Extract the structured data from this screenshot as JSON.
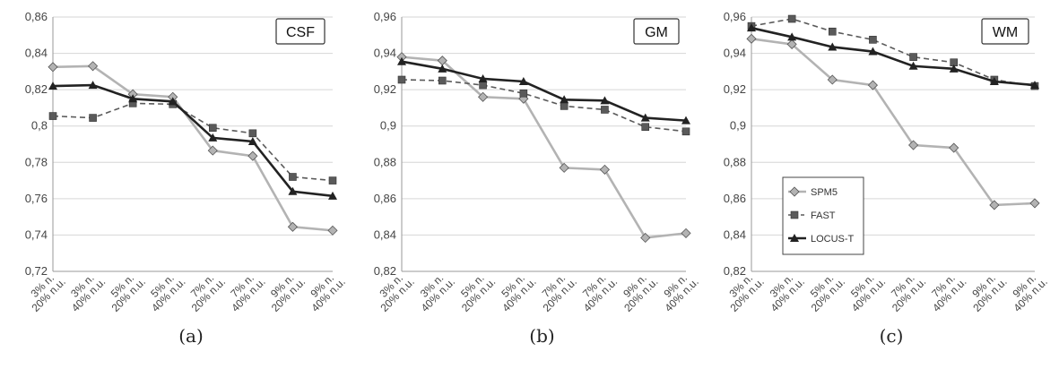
{
  "chart_data": [
    {
      "type": "line",
      "box_label": "CSF",
      "caption": "(a)",
      "categories": [
        [
          "3% n.",
          "20% n.u."
        ],
        [
          "3% n.",
          "40% n.u."
        ],
        [
          "5% n.",
          "20% n.u."
        ],
        [
          "5% n.",
          "40% n.u."
        ],
        [
          "7% n.",
          "20% n.u."
        ],
        [
          "7% n.",
          "40% n.u."
        ],
        [
          "9% n.",
          "20% n.u."
        ],
        [
          "9% n.",
          "40% n.u."
        ]
      ],
      "ylim": [
        0.72,
        0.86
      ],
      "yticks": [
        "0,72",
        "0,74",
        "0,76",
        "0,78",
        "0,8",
        "0,82",
        "0,84",
        "0,86"
      ],
      "grid": true,
      "series": [
        {
          "name": "SPM5",
          "values": [
            0.8325,
            0.833,
            0.8175,
            0.816,
            0.7865,
            0.7835,
            0.7445,
            0.7425
          ]
        },
        {
          "name": "FAST",
          "values": [
            0.8055,
            0.8045,
            0.8125,
            0.812,
            0.799,
            0.796,
            0.772,
            0.77
          ]
        },
        {
          "name": "LOCUS-T",
          "values": [
            0.822,
            0.8225,
            0.815,
            0.8135,
            0.7935,
            0.7915,
            0.764,
            0.7615
          ]
        }
      ]
    },
    {
      "type": "line",
      "box_label": "GM",
      "caption": "(b)",
      "categories": [
        [
          "3% n.",
          "20% n.u."
        ],
        [
          "3% n.",
          "40% n.u."
        ],
        [
          "5% n.",
          "20% n.u."
        ],
        [
          "5% n.",
          "40% n.u."
        ],
        [
          "7% n.",
          "20% n.u."
        ],
        [
          "7% n.",
          "40% n.u."
        ],
        [
          "9% n.",
          "20% n.u."
        ],
        [
          "9% n.",
          "40% n.u."
        ]
      ],
      "ylim": [
        0.82,
        0.96
      ],
      "yticks": [
        "0,82",
        "0,84",
        "0,86",
        "0,88",
        "0,9",
        "0,92",
        "0,94",
        "0,96"
      ],
      "grid": true,
      "series": [
        {
          "name": "SPM5",
          "values": [
            0.938,
            0.936,
            0.916,
            0.915,
            0.877,
            0.876,
            0.8385,
            0.841
          ]
        },
        {
          "name": "FAST",
          "values": [
            0.9255,
            0.925,
            0.9225,
            0.918,
            0.911,
            0.909,
            0.8995,
            0.897
          ]
        },
        {
          "name": "LOCUS-T",
          "values": [
            0.9355,
            0.9315,
            0.926,
            0.9245,
            0.9145,
            0.914,
            0.9045,
            0.903
          ]
        }
      ]
    },
    {
      "type": "line",
      "box_label": "WM",
      "caption": "(c)",
      "categories": [
        [
          "3% n.",
          "20% n.u."
        ],
        [
          "3% n.",
          "40% n.u."
        ],
        [
          "5% n.",
          "20% n.u."
        ],
        [
          "5% n.",
          "40% n.u."
        ],
        [
          "7% n.",
          "20% n.u."
        ],
        [
          "7% n.",
          "40% n.u."
        ],
        [
          "9% n.",
          "20% n.u."
        ],
        [
          "9% n.",
          "40% n.u."
        ]
      ],
      "ylim": [
        0.82,
        0.96
      ],
      "yticks": [
        "0,82",
        "0,84",
        "0,86",
        "0,88",
        "0,9",
        "0,92",
        "0,94",
        "0,96"
      ],
      "grid": true,
      "legend": {
        "placement": "bottom-left",
        "entries": [
          "SPM5",
          "FAST",
          "LOCUS-T"
        ]
      },
      "series": [
        {
          "name": "SPM5",
          "values": [
            0.948,
            0.945,
            0.9255,
            0.9225,
            0.8895,
            0.888,
            0.8565,
            0.8575
          ]
        },
        {
          "name": "FAST",
          "values": [
            0.955,
            0.959,
            0.952,
            0.9475,
            0.938,
            0.935,
            0.9255,
            0.922
          ]
        },
        {
          "name": "LOCUS-T",
          "values": [
            0.954,
            0.949,
            0.9435,
            0.941,
            0.933,
            0.9315,
            0.9245,
            0.9225
          ]
        }
      ]
    }
  ],
  "series_style": {
    "SPM5": {
      "color": "#b3b3b3",
      "marker": "diamond",
      "dash": "none"
    },
    "FAST": {
      "color": "#5a5a5a",
      "marker": "square",
      "dash": "dashed"
    },
    "LOCUS-T": {
      "color": "#222222",
      "marker": "triangle",
      "dash": "none"
    }
  }
}
